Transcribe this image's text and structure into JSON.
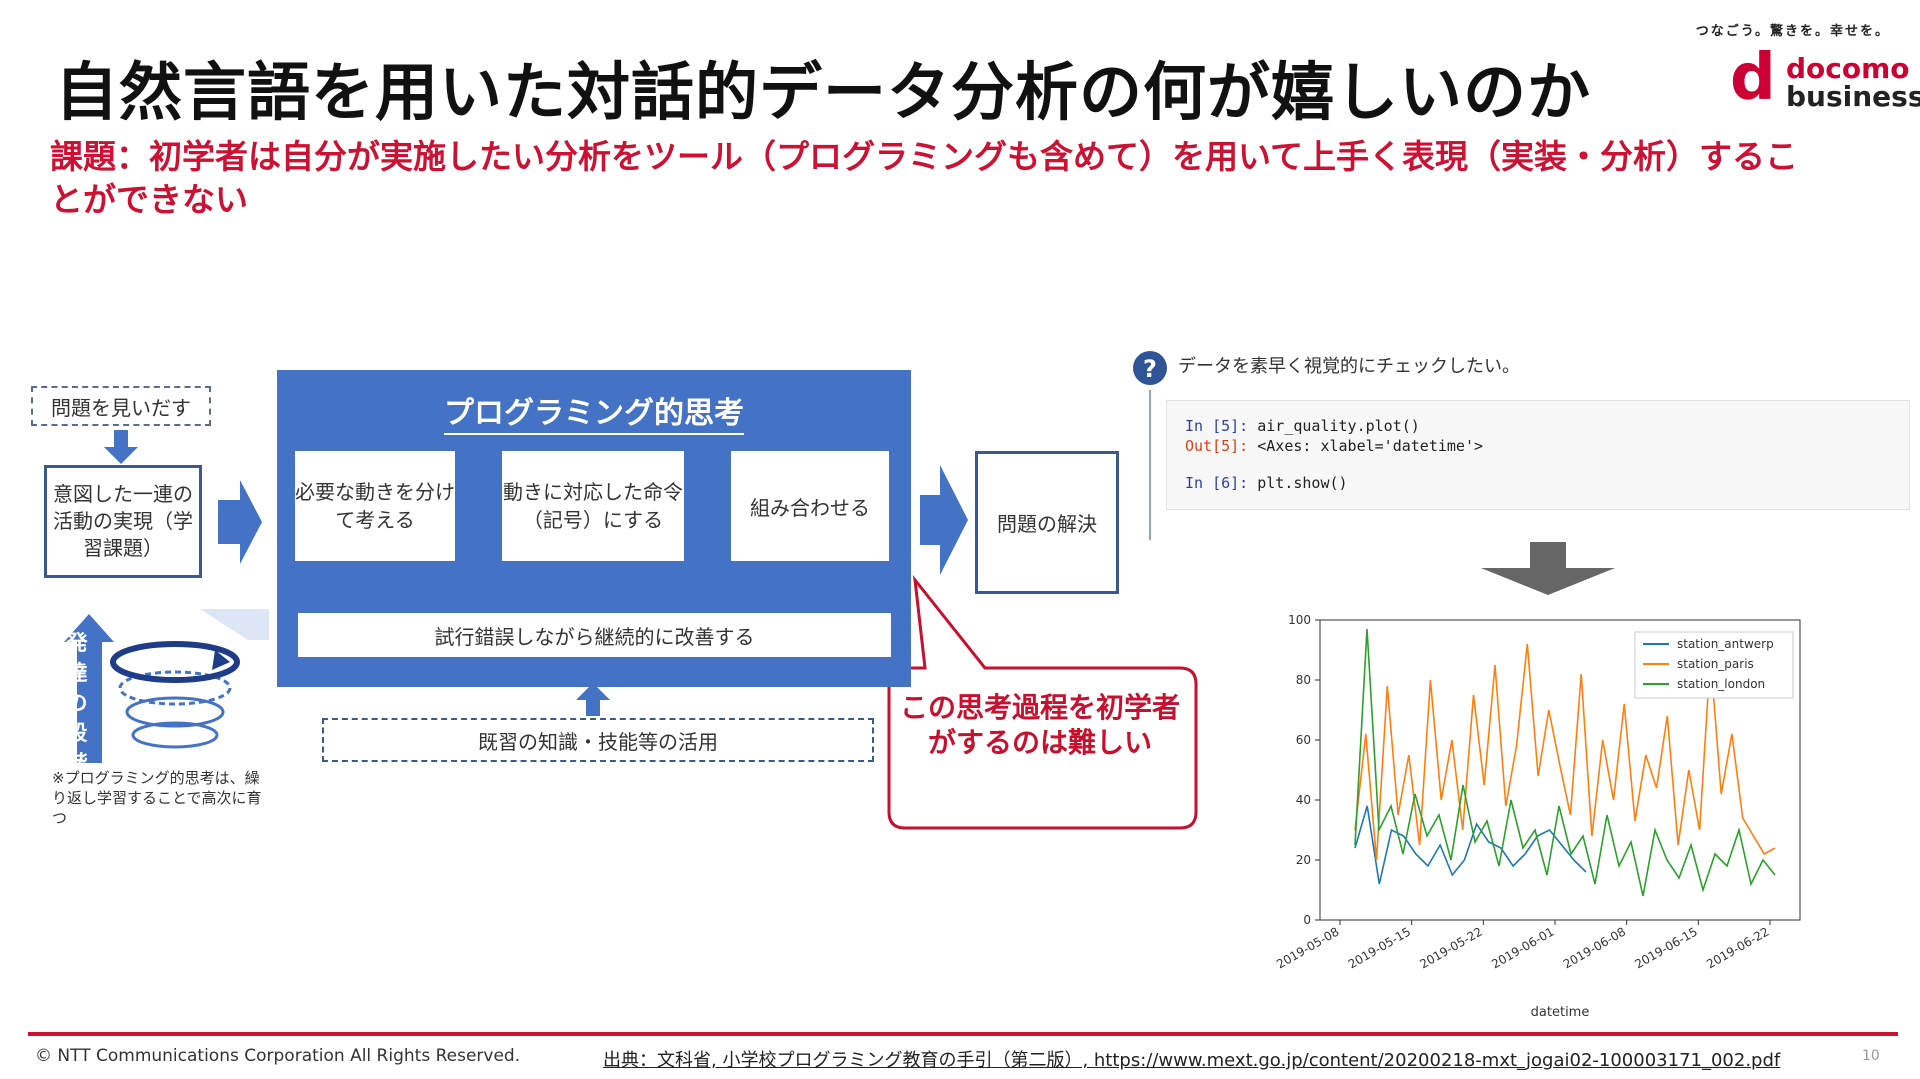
{
  "header": {
    "title": "自然言語を用いた対話的データ分析の何が嬉しいのか",
    "subtitle": "課題：初学者は自分が実施したい分析をツール（プログラミングも含めて）を用いて上手く表現（実装・分析）することができない",
    "tagline": "つなごう。驚きを。幸せを。",
    "logo": {
      "mark": "d",
      "line1": "docomo",
      "line2": "business"
    }
  },
  "diagram": {
    "problem_find": "問題を見いだす",
    "intent": "意図した一連の活動の実現（学習課題）",
    "panel_title": "プログラミング的思考",
    "step1": "必要な動きを分けて考える",
    "step2": "動きに対応した命令（記号）にする",
    "step3": "組み合わせる",
    "trial": "試行錯誤しながら継続的に改善する",
    "existing": "既習の知識・技能等の活用",
    "solution": "問題の解決",
    "development": "発達の段階",
    "development_note": "※プログラミング的思考は、繰り返し学習することで高次に育つ",
    "callout": "この思考過程を初学者がするのは難しい"
  },
  "notebook": {
    "question": "データを素早く視覚的にチェックしたい。",
    "line1_prompt": "In [5]:",
    "line1_code": " air_quality.plot()",
    "line2_prompt": "Out[5]:",
    "line2_code": " <Axes: xlabel='datetime'>",
    "line3_prompt": "In [6]:",
    "line3_code": " plt.show()"
  },
  "chart_data": {
    "type": "line",
    "xlabel": "datetime",
    "ylabel": "",
    "ylim": [
      0,
      100
    ],
    "yticks": [
      0,
      20,
      40,
      60,
      80,
      100
    ],
    "xticks": [
      "2019-05-08",
      "2019-05-15",
      "2019-05-22",
      "2019-06-01",
      "2019-06-08",
      "2019-06-15",
      "2019-06-22"
    ],
    "legend_position": "top-right",
    "series": [
      {
        "name": "station_antwerp",
        "color": "#1f77b4",
        "values": [
          24,
          38,
          12,
          30,
          28,
          22,
          18,
          25,
          15,
          20,
          32,
          26,
          24,
          18,
          22,
          28,
          30,
          25,
          20,
          16
        ]
      },
      {
        "name": "station_paris",
        "color": "#ff7f0e",
        "values": [
          30,
          62,
          20,
          78,
          35,
          55,
          25,
          80,
          40,
          60,
          30,
          75,
          45,
          85,
          38,
          58,
          92,
          48,
          70,
          52,
          35,
          82,
          28,
          60,
          40,
          72,
          33,
          55,
          44,
          68,
          25,
          50,
          30,
          88,
          42,
          62,
          34,
          28,
          22,
          24
        ]
      },
      {
        "name": "station_london",
        "color": "#2ca02c",
        "values": [
          25,
          97,
          30,
          38,
          22,
          42,
          28,
          35,
          20,
          45,
          26,
          33,
          18,
          40,
          24,
          30,
          15,
          38,
          22,
          28,
          12,
          35,
          18,
          26,
          8,
          30,
          20,
          14,
          25,
          10,
          22,
          18,
          30,
          12,
          20,
          15
        ]
      }
    ]
  },
  "footer": {
    "copyright": "© NTT Communications Corporation All Rights Reserved.",
    "source": "出典：文科省, 小学校プログラミング教育の手引（第二版）, https://www.mext.go.jp/content/20200218-mxt_jogai02-100003171_002.pdf",
    "page": "10"
  }
}
